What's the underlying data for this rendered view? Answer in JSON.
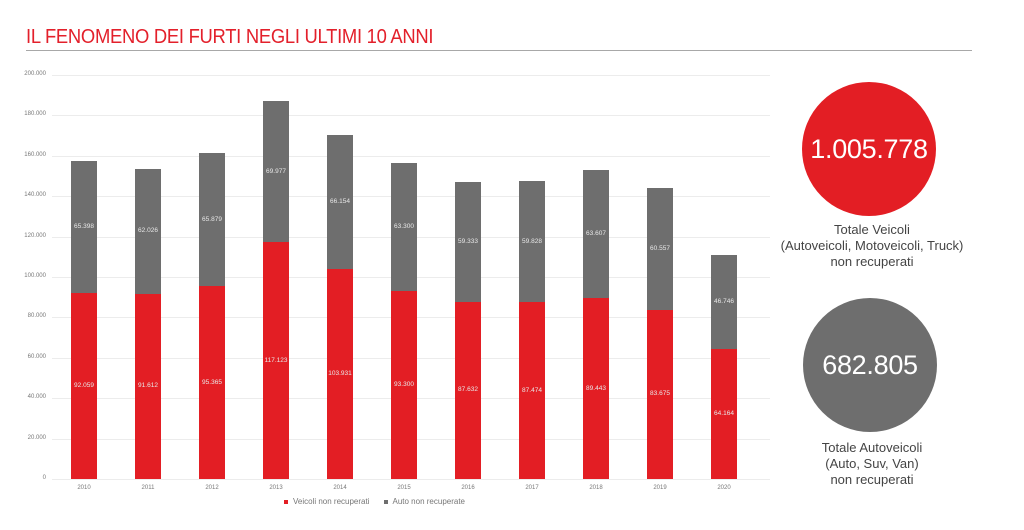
{
  "header": {
    "title": "IL FENOMENO DEI FURTI NEGLI ULTIMI 10 ANNI"
  },
  "chart_data": {
    "type": "bar",
    "stacked": true,
    "title": "IL FENOMENO DEI FURTI NEGLI ULTIMI 10 ANNI",
    "xlabel": "",
    "ylabel": "",
    "ylim": [
      0,
      200000
    ],
    "yticks": [
      "0",
      "20.000",
      "40.000",
      "60.000",
      "80.000",
      "100.000",
      "120.000",
      "140.000",
      "160.000",
      "180.000",
      "200.000"
    ],
    "grid": true,
    "legend_position": "bottom",
    "categories": [
      "2010",
      "2011",
      "2012",
      "2013",
      "2014",
      "2015",
      "2016",
      "2017",
      "2018",
      "2019",
      "2020"
    ],
    "series": [
      {
        "name": "Veicoli non recuperati",
        "color": "#e31e24",
        "values": [
          92059,
          91612,
          95365,
          117123,
          103931,
          93300,
          87632,
          87474,
          89443,
          83675,
          64164
        ],
        "labels": [
          "92.059",
          "91.612",
          "95.365",
          "117.123",
          "103.931",
          "93.300",
          "87.632",
          "87.474",
          "89.443",
          "83.675",
          "64.164"
        ]
      },
      {
        "name": "Auto non recuperate",
        "color": "#6e6e6e",
        "values": [
          65398,
          62026,
          65879,
          69977,
          66154,
          63300,
          59333,
          59828,
          63607,
          60557,
          46746
        ],
        "labels": [
          "65.398",
          "62.026",
          "65.879",
          "69.977",
          "66.154",
          "63.300",
          "59.333",
          "59.828",
          "63.607",
          "60.557",
          "46.746"
        ]
      }
    ]
  },
  "summary": {
    "total_vehicles": {
      "value": "1.005.778",
      "caption_line1": "Totale Veicoli",
      "caption_line2": "(Autoveicoli, Motoveicoli, Truck)",
      "caption_line3": "non recuperati",
      "color": "#e31e24"
    },
    "total_cars": {
      "value": "682.805",
      "caption_line1": "Totale Autoveicoli",
      "caption_line2": "(Auto, Suv, Van)",
      "caption_line3": "non recuperati",
      "color": "#6e6e6e"
    }
  }
}
